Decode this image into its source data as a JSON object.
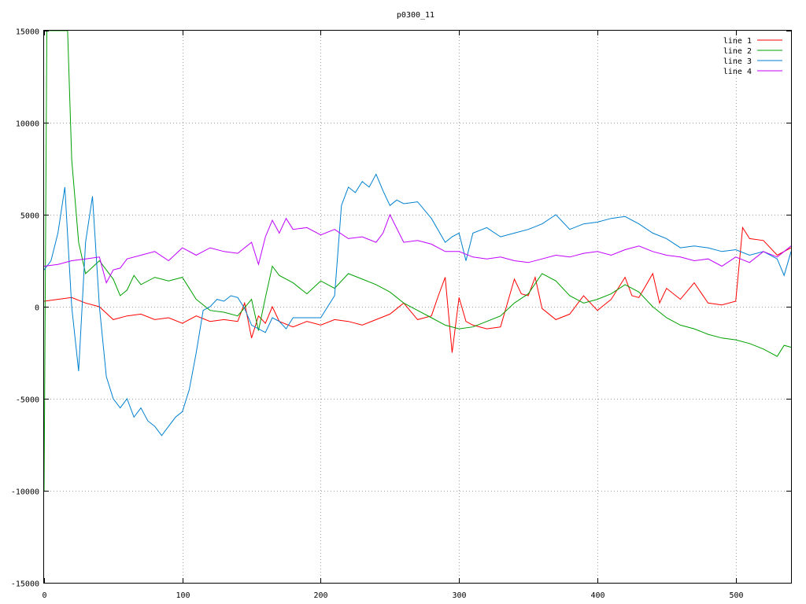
{
  "chart_data": {
    "type": "line",
    "title": "p0300_11",
    "xlabel": "",
    "ylabel": "",
    "xlim": [
      0,
      540
    ],
    "ylim": [
      -15000,
      15000
    ],
    "xticks": [
      0,
      100,
      200,
      300,
      400,
      500
    ],
    "yticks": [
      -15000,
      -10000,
      -5000,
      0,
      5000,
      10000,
      15000
    ],
    "grid": true,
    "legend_position": "top-right",
    "series": [
      {
        "name": "line 1",
        "color": "#ff0000",
        "x": [
          0,
          10,
          20,
          30,
          40,
          50,
          60,
          70,
          80,
          90,
          100,
          110,
          120,
          130,
          140,
          145,
          150,
          155,
          160,
          165,
          170,
          180,
          190,
          200,
          210,
          220,
          230,
          240,
          250,
          260,
          270,
          280,
          285,
          290,
          295,
          300,
          305,
          310,
          320,
          330,
          340,
          345,
          350,
          355,
          360,
          370,
          380,
          390,
          400,
          410,
          420,
          425,
          430,
          440,
          445,
          450,
          460,
          470,
          480,
          490,
          500,
          505,
          510,
          520,
          530,
          540
        ],
        "y": [
          300,
          400,
          500,
          200,
          0,
          -700,
          -500,
          -400,
          -700,
          -600,
          -900,
          -500,
          -800,
          -700,
          -800,
          200,
          -1700,
          -500,
          -900,
          0,
          -800,
          -1100,
          -800,
          -1000,
          -700,
          -800,
          -1000,
          -700,
          -400,
          200,
          -700,
          -500,
          600,
          1600,
          -2500,
          500,
          -800,
          -1000,
          -1200,
          -1100,
          1500,
          700,
          600,
          1600,
          -100,
          -700,
          -400,
          600,
          -200,
          400,
          1600,
          600,
          500,
          1800,
          200,
          1000,
          400,
          1300,
          200,
          100,
          300,
          4300,
          3700,
          3600,
          2800,
          3200
        ]
      },
      {
        "name": "line 2",
        "color": "#00a000",
        "x": [
          0,
          2,
          5,
          10,
          15,
          17,
          20,
          25,
          30,
          40,
          50,
          55,
          60,
          65,
          70,
          80,
          90,
          100,
          110,
          120,
          130,
          140,
          150,
          155,
          160,
          165,
          170,
          180,
          190,
          200,
          210,
          220,
          230,
          240,
          250,
          260,
          270,
          280,
          290,
          300,
          310,
          320,
          330,
          340,
          350,
          360,
          370,
          380,
          390,
          400,
          410,
          420,
          430,
          440,
          450,
          460,
          470,
          480,
          490,
          500,
          510,
          520,
          530,
          535,
          540
        ],
        "y": [
          -10000,
          15000,
          15000,
          15000,
          15000,
          15000,
          8000,
          3500,
          1800,
          2500,
          1500,
          600,
          900,
          1700,
          1200,
          1600,
          1400,
          1600,
          400,
          -200,
          -300,
          -500,
          400,
          -1300,
          500,
          2200,
          1700,
          1300,
          700,
          1400,
          1000,
          1800,
          1500,
          1200,
          800,
          200,
          -200,
          -600,
          -1000,
          -1200,
          -1100,
          -800,
          -500,
          200,
          700,
          1800,
          1400,
          600,
          200,
          400,
          700,
          1200,
          800,
          0,
          -600,
          -1000,
          -1200,
          -1500,
          -1700,
          -1800,
          -2000,
          -2300,
          -2700,
          -2100,
          -2200
        ]
      },
      {
        "name": "line 3",
        "color": "#0080d0",
        "x": [
          0,
          5,
          10,
          15,
          20,
          25,
          30,
          35,
          40,
          45,
          50,
          55,
          60,
          65,
          70,
          75,
          80,
          85,
          90,
          95,
          100,
          105,
          110,
          115,
          120,
          125,
          130,
          135,
          140,
          145,
          150,
          155,
          160,
          165,
          170,
          175,
          180,
          190,
          200,
          205,
          210,
          215,
          220,
          225,
          230,
          235,
          240,
          245,
          250,
          255,
          260,
          270,
          280,
          290,
          295,
          300,
          305,
          310,
          320,
          330,
          340,
          350,
          360,
          370,
          380,
          390,
          400,
          410,
          420,
          430,
          440,
          450,
          460,
          470,
          480,
          490,
          500,
          510,
          520,
          530,
          535,
          540
        ],
        "y": [
          2000,
          2500,
          4000,
          6500,
          0,
          -3500,
          3500,
          6000,
          0,
          -3800,
          -5000,
          -5500,
          -5000,
          -6000,
          -5500,
          -6200,
          -6500,
          -7000,
          -6500,
          -6000,
          -5700,
          -4500,
          -2500,
          -200,
          0,
          400,
          300,
          600,
          500,
          -100,
          -1000,
          -1200,
          -1400,
          -600,
          -800,
          -1200,
          -600,
          -600,
          -600,
          0,
          600,
          5500,
          6500,
          6200,
          6800,
          6500,
          7200,
          6300,
          5500,
          5800,
          5600,
          5700,
          4800,
          3500,
          3800,
          4000,
          2500,
          4000,
          4300,
          3800,
          4000,
          4200,
          4500,
          5000,
          4200,
          4500,
          4600,
          4800,
          4900,
          4500,
          4000,
          3700,
          3200,
          3300,
          3200,
          3000,
          3100,
          2800,
          3000,
          2600,
          1700,
          3000
        ]
      },
      {
        "name": "line 4",
        "color": "#c000ff",
        "x": [
          0,
          10,
          20,
          30,
          40,
          45,
          50,
          55,
          60,
          70,
          80,
          90,
          100,
          110,
          120,
          130,
          140,
          150,
          155,
          160,
          165,
          170,
          175,
          180,
          190,
          200,
          210,
          220,
          230,
          240,
          245,
          250,
          260,
          270,
          280,
          290,
          300,
          310,
          320,
          330,
          340,
          350,
          360,
          370,
          380,
          390,
          400,
          410,
          420,
          430,
          440,
          450,
          460,
          470,
          480,
          490,
          500,
          510,
          520,
          530,
          540
        ],
        "y": [
          2200,
          2300,
          2500,
          2600,
          2700,
          1300,
          2000,
          2100,
          2600,
          2800,
          3000,
          2500,
          3200,
          2800,
          3200,
          3000,
          2900,
          3500,
          2300,
          3800,
          4700,
          4000,
          4800,
          4200,
          4300,
          3900,
          4200,
          3700,
          3800,
          3500,
          4000,
          5000,
          3500,
          3600,
          3400,
          3000,
          3000,
          2700,
          2600,
          2700,
          2500,
          2400,
          2600,
          2800,
          2700,
          2900,
          3000,
          2800,
          3100,
          3300,
          3000,
          2800,
          2700,
          2500,
          2600,
          2200,
          2700,
          2400,
          3000,
          2700,
          3300
        ]
      }
    ]
  }
}
